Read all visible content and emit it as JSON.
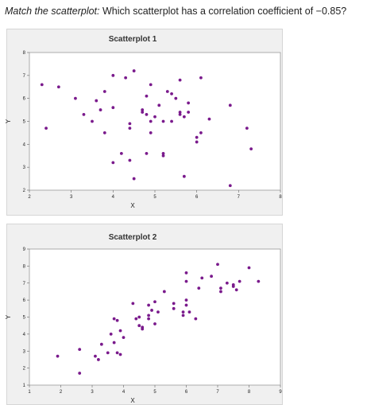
{
  "question": {
    "lead": "Match the scatterplot:",
    "text": " Which scatterplot has a correlation coefficient of −0.85?"
  },
  "colors": {
    "point": "#7a1a8c",
    "plot_bg": "#ffffff",
    "panel_bg": "#f0f0f0"
  },
  "chart_data": [
    {
      "type": "scatter",
      "title": "Scatterplot 1",
      "xlabel": "X",
      "ylabel": "Y",
      "xlim": [
        2,
        8
      ],
      "ylim": [
        2,
        8
      ],
      "xticks": [
        2,
        3,
        4,
        5,
        6,
        7,
        8
      ],
      "yticks": [
        2,
        3,
        4,
        5,
        6,
        7,
        8
      ],
      "grid": false,
      "points": [
        {
          "x": 2.3,
          "y": 6.6
        },
        {
          "x": 2.4,
          "y": 4.7
        },
        {
          "x": 2.7,
          "y": 6.5
        },
        {
          "x": 3.1,
          "y": 6.0
        },
        {
          "x": 3.3,
          "y": 5.3
        },
        {
          "x": 3.5,
          "y": 5.0
        },
        {
          "x": 3.6,
          "y": 5.9
        },
        {
          "x": 3.7,
          "y": 5.5
        },
        {
          "x": 3.8,
          "y": 6.3
        },
        {
          "x": 3.8,
          "y": 4.5
        },
        {
          "x": 4.0,
          "y": 5.6
        },
        {
          "x": 4.0,
          "y": 3.2
        },
        {
          "x": 4.0,
          "y": 7.0
        },
        {
          "x": 4.2,
          "y": 3.6
        },
        {
          "x": 4.3,
          "y": 6.9
        },
        {
          "x": 4.4,
          "y": 4.7
        },
        {
          "x": 4.4,
          "y": 3.3
        },
        {
          "x": 4.4,
          "y": 4.9
        },
        {
          "x": 4.5,
          "y": 7.2
        },
        {
          "x": 4.5,
          "y": 2.5
        },
        {
          "x": 4.7,
          "y": 5.5
        },
        {
          "x": 4.7,
          "y": 5.4
        },
        {
          "x": 4.8,
          "y": 3.6
        },
        {
          "x": 4.8,
          "y": 5.3
        },
        {
          "x": 4.8,
          "y": 6.1
        },
        {
          "x": 4.9,
          "y": 6.6
        },
        {
          "x": 4.9,
          "y": 4.5
        },
        {
          "x": 4.9,
          "y": 5.0
        },
        {
          "x": 5.0,
          "y": 5.2
        },
        {
          "x": 5.1,
          "y": 5.7
        },
        {
          "x": 5.2,
          "y": 3.6
        },
        {
          "x": 5.2,
          "y": 3.5
        },
        {
          "x": 5.2,
          "y": 5.0
        },
        {
          "x": 5.3,
          "y": 6.3
        },
        {
          "x": 5.4,
          "y": 6.2
        },
        {
          "x": 5.4,
          "y": 5.0
        },
        {
          "x": 5.5,
          "y": 6.0
        },
        {
          "x": 5.6,
          "y": 5.4
        },
        {
          "x": 5.6,
          "y": 5.3
        },
        {
          "x": 5.6,
          "y": 6.8
        },
        {
          "x": 5.7,
          "y": 2.6
        },
        {
          "x": 5.7,
          "y": 5.2
        },
        {
          "x": 5.8,
          "y": 5.4
        },
        {
          "x": 5.8,
          "y": 5.8
        },
        {
          "x": 6.0,
          "y": 4.1
        },
        {
          "x": 6.0,
          "y": 4.3
        },
        {
          "x": 6.1,
          "y": 4.5
        },
        {
          "x": 6.1,
          "y": 6.9
        },
        {
          "x": 6.3,
          "y": 5.1
        },
        {
          "x": 6.8,
          "y": 5.7
        },
        {
          "x": 6.8,
          "y": 2.2
        },
        {
          "x": 7.2,
          "y": 4.7
        },
        {
          "x": 7.3,
          "y": 3.8
        }
      ]
    },
    {
      "type": "scatter",
      "title": "Scatterplot 2",
      "xlabel": "X",
      "ylabel": "Y",
      "xlim": [
        1,
        9
      ],
      "ylim": [
        1,
        9
      ],
      "xticks": [
        1,
        2,
        3,
        4,
        5,
        6,
        7,
        8,
        9
      ],
      "yticks": [
        1,
        2,
        3,
        4,
        5,
        6,
        7,
        8,
        9
      ],
      "grid": false,
      "points": [
        {
          "x": 1.9,
          "y": 2.7
        },
        {
          "x": 2.6,
          "y": 3.1
        },
        {
          "x": 2.6,
          "y": 1.7
        },
        {
          "x": 3.1,
          "y": 2.7
        },
        {
          "x": 3.2,
          "y": 2.5
        },
        {
          "x": 3.3,
          "y": 3.4
        },
        {
          "x": 3.5,
          "y": 2.9
        },
        {
          "x": 3.6,
          "y": 4.0
        },
        {
          "x": 3.7,
          "y": 4.9
        },
        {
          "x": 3.7,
          "y": 3.5
        },
        {
          "x": 3.8,
          "y": 4.8
        },
        {
          "x": 3.8,
          "y": 2.9
        },
        {
          "x": 3.9,
          "y": 4.2
        },
        {
          "x": 3.9,
          "y": 2.8
        },
        {
          "x": 4.0,
          "y": 3.8
        },
        {
          "x": 4.3,
          "y": 5.8
        },
        {
          "x": 4.4,
          "y": 4.9
        },
        {
          "x": 4.5,
          "y": 4.5
        },
        {
          "x": 4.5,
          "y": 5.0
        },
        {
          "x": 4.6,
          "y": 4.3
        },
        {
          "x": 4.6,
          "y": 4.4
        },
        {
          "x": 4.8,
          "y": 5.1
        },
        {
          "x": 4.8,
          "y": 4.9
        },
        {
          "x": 4.8,
          "y": 5.7
        },
        {
          "x": 4.9,
          "y": 5.4
        },
        {
          "x": 5.0,
          "y": 5.9
        },
        {
          "x": 5.0,
          "y": 4.6
        },
        {
          "x": 5.1,
          "y": 5.3
        },
        {
          "x": 5.3,
          "y": 6.5
        },
        {
          "x": 5.6,
          "y": 5.5
        },
        {
          "x": 5.6,
          "y": 5.8
        },
        {
          "x": 5.9,
          "y": 5.3
        },
        {
          "x": 5.9,
          "y": 5.1
        },
        {
          "x": 6.0,
          "y": 5.7
        },
        {
          "x": 6.0,
          "y": 6.0
        },
        {
          "x": 6.0,
          "y": 7.1
        },
        {
          "x": 6.0,
          "y": 7.6
        },
        {
          "x": 6.1,
          "y": 5.3
        },
        {
          "x": 6.3,
          "y": 4.9
        },
        {
          "x": 6.4,
          "y": 6.7
        },
        {
          "x": 6.5,
          "y": 7.3
        },
        {
          "x": 6.8,
          "y": 7.4
        },
        {
          "x": 7.0,
          "y": 8.1
        },
        {
          "x": 7.1,
          "y": 6.7
        },
        {
          "x": 7.1,
          "y": 6.5
        },
        {
          "x": 7.3,
          "y": 7.0
        },
        {
          "x": 7.5,
          "y": 6.8
        },
        {
          "x": 7.5,
          "y": 6.9
        },
        {
          "x": 7.6,
          "y": 6.6
        },
        {
          "x": 7.7,
          "y": 7.1
        },
        {
          "x": 8.0,
          "y": 7.9
        },
        {
          "x": 8.3,
          "y": 7.1
        }
      ]
    }
  ]
}
